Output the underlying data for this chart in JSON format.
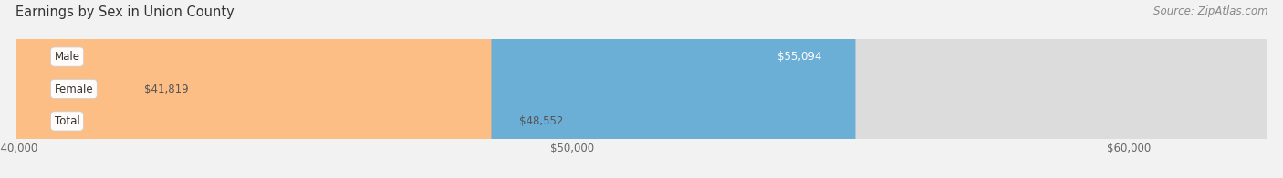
{
  "title": "Earnings by Sex in Union County",
  "source": "Source: ZipAtlas.com",
  "categories": [
    "Male",
    "Female",
    "Total"
  ],
  "values": [
    55094,
    41819,
    48552
  ],
  "bar_colors": [
    "#6BAED6",
    "#F9A8C0",
    "#FDBE85"
  ],
  "xmin": 40000,
  "xmax": 62500,
  "xticks": [
    40000,
    50000,
    60000
  ],
  "xtick_labels": [
    "$40,000",
    "$50,000",
    "$60,000"
  ],
  "value_labels": [
    "$55,094",
    "$41,819",
    "$48,552"
  ],
  "value_inside": [
    true,
    false,
    false
  ],
  "value_colors_inside": [
    "#ffffff",
    "#555555",
    "#555555"
  ],
  "bg_color": "#f2f2f2",
  "bar_bg_color": "#e4e4e4",
  "bar_bg_color2": "#d8d8d8",
  "title_fontsize": 10.5,
  "source_fontsize": 8.5,
  "label_fontsize": 8.5,
  "value_fontsize": 8.5,
  "tick_fontsize": 8.5,
  "bar_height": 0.52,
  "figsize": [
    14.06,
    1.96
  ],
  "dpi": 100
}
